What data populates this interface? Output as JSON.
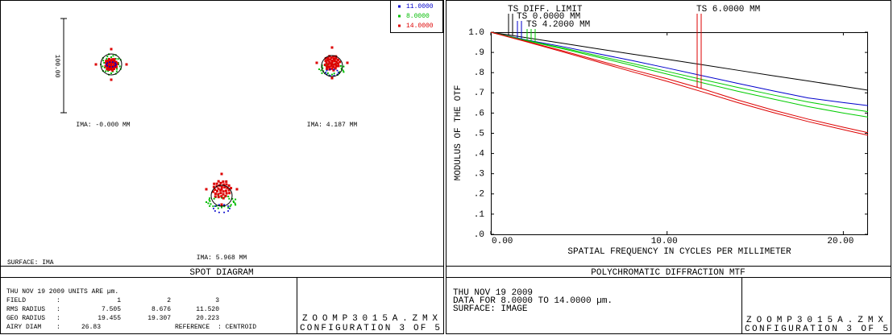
{
  "spot_panel": {
    "legend": [
      {
        "label": "11.0000",
        "color": "#0000cc"
      },
      {
        "label": "8.0000",
        "color": "#00bb00"
      },
      {
        "label": "14.0000",
        "color": "#dd0000"
      }
    ],
    "scale_label": "100.00",
    "fields": [
      "IMA: -0.000 MM",
      "IMA: 4.187 MM",
      "IMA: 5.968 MM"
    ],
    "surface": "SURFACE: IMA",
    "title": "SPOT DIAGRAM",
    "table": {
      "rows": [
        [
          "THU NOV 19 2009  UNITS ARE µm."
        ],
        [
          "FIELD",
          ":",
          "1",
          "2",
          "3"
        ],
        [
          "RMS RADIUS",
          ":",
          "7.505",
          "8.676",
          "11.520"
        ],
        [
          "GEO RADIUS",
          ":",
          "19.455",
          "19.307",
          "20.223"
        ],
        [
          "AIRY DIAM",
          ":",
          "26.83",
          "REFERENCE",
          ": CENTROID"
        ]
      ]
    },
    "file": "ZOOMP3015A.ZMX",
    "config": "CONFIGURATION 3 OF 5"
  },
  "chart_data": {
    "type": "line",
    "title": "POLYCHROMATIC DIFFRACTION MTF",
    "x_label": "SPATIAL FREQUENCY IN CYCLES PER MILLIMETER",
    "y_label": "MODULUS OF THE OTF",
    "x": [
      0,
      2,
      4,
      6,
      8,
      10,
      12,
      14,
      16,
      18,
      20,
      21.4
    ],
    "series": [
      {
        "name": "TS DIFF. LIMIT",
        "color": "#000000",
        "values": [
          1.0,
          0.973,
          0.946,
          0.919,
          0.892,
          0.866,
          0.839,
          0.812,
          0.785,
          0.759,
          0.732,
          0.713
        ]
      },
      {
        "name": "TS 0.0000 MM",
        "color": "#0000cc",
        "values": [
          1.0,
          0.962,
          0.93,
          0.895,
          0.86,
          0.823,
          0.785,
          0.747,
          0.71,
          0.675,
          0.652,
          0.637
        ]
      },
      {
        "name": "TS 4.2000 MM",
        "color": "#00cc00",
        "tangential": [
          1.0,
          0.96,
          0.924,
          0.885,
          0.846,
          0.806,
          0.766,
          0.727,
          0.69,
          0.655,
          0.625,
          0.607
        ],
        "sagittal": [
          1.0,
          0.958,
          0.92,
          0.878,
          0.836,
          0.793,
          0.75,
          0.708,
          0.67,
          0.632,
          0.6,
          0.58
        ]
      },
      {
        "name": "TS 6.0000 MM",
        "color": "#dd0000",
        "tangential": [
          1.0,
          0.955,
          0.91,
          0.862,
          0.815,
          0.77,
          0.72,
          0.665,
          0.615,
          0.57,
          0.53,
          0.503
        ],
        "sagittal": [
          1.0,
          0.953,
          0.905,
          0.855,
          0.805,
          0.757,
          0.705,
          0.652,
          0.603,
          0.558,
          0.518,
          0.49
        ]
      }
    ],
    "xlim": [
      0,
      21.4
    ],
    "xticks": [
      {
        "value": 0,
        "label": "0.00"
      },
      {
        "value": 10,
        "label": "10.00"
      },
      {
        "value": 20,
        "label": "20.00"
      }
    ],
    "ylim": [
      0,
      1
    ],
    "yticks": [
      {
        "value": 0,
        "label": ".0"
      },
      {
        "value": 0.1,
        "label": ".1"
      },
      {
        "value": 0.2,
        "label": ".2"
      },
      {
        "value": 0.3,
        "label": ".3"
      },
      {
        "value": 0.4,
        "label": ".4"
      },
      {
        "value": 0.5,
        "label": ".5"
      },
      {
        "value": 0.6,
        "label": ".6"
      },
      {
        "value": 0.7,
        "label": ".7"
      },
      {
        "value": 0.8,
        "label": ".8"
      },
      {
        "value": 0.9,
        "label": ".9"
      },
      {
        "value": 1,
        "label": "1.0"
      }
    ],
    "info": [
      "THU NOV 19 2009",
      "DATA FOR 8.0000 TO 14.0000 µm.",
      "SURFACE: IMAGE"
    ],
    "file": "ZOOMP3015A.ZMX",
    "config": "CONFIGURATION 3 OF 5"
  }
}
